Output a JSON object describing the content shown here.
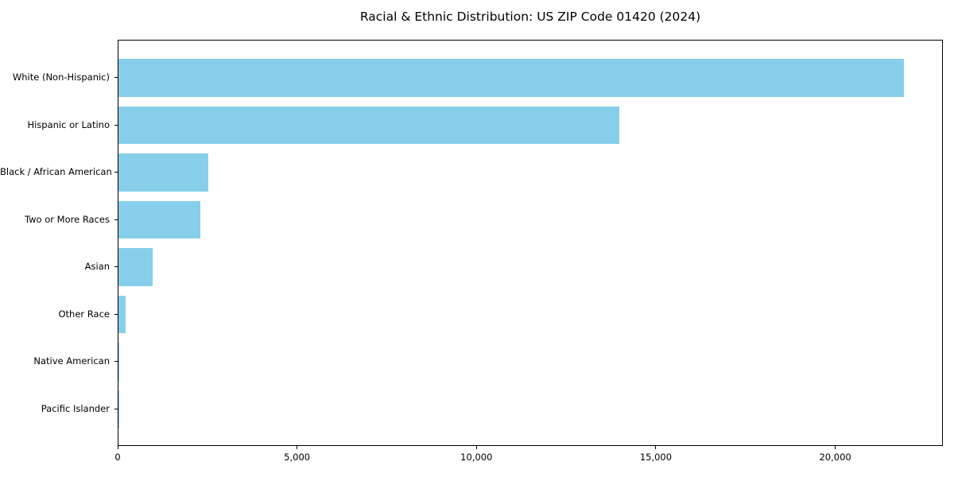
{
  "chart_data": {
    "type": "bar",
    "orientation": "horizontal",
    "title": "Racial & Ethnic Distribution: US ZIP Code 01420 (2024)",
    "categories": [
      "White (Non-Hispanic)",
      "Hispanic or Latino",
      "Black / African American",
      "Two or More Races",
      "Asian",
      "Other Race",
      "Native American",
      "Pacific Islander"
    ],
    "values": [
      21900,
      13970,
      2500,
      2280,
      950,
      200,
      30,
      10
    ],
    "xlabel": "",
    "ylabel": "",
    "xlim": [
      0,
      23000
    ],
    "xticks": {
      "values": [
        0,
        5000,
        10000,
        15000,
        20000
      ],
      "labels": [
        "0",
        "5,000",
        "10,000",
        "15,000",
        "20,000"
      ]
    },
    "bar_color": "#87CEEB",
    "axis_color": "#000000",
    "text_color": "#000000",
    "background_color": "#ffffff",
    "grid": false,
    "legend": "none"
  }
}
